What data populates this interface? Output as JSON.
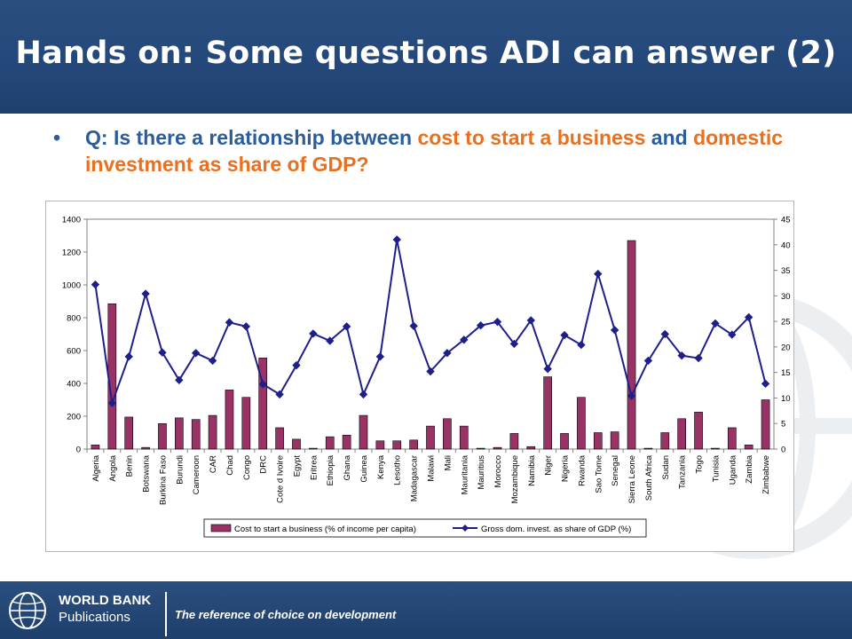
{
  "slide": {
    "title": "Hands on: Some questions ADI can answer (2)",
    "bullet": "•",
    "question": {
      "part1": "Q: Is there a relationship between ",
      "part2": "cost to start a business",
      "part3": " and ",
      "part4": "domestic investment as share of GDP?"
    }
  },
  "footer": {
    "brand_line1": "WORLD BANK",
    "brand_line2": "Publications",
    "tagline": "The reference of choice on development"
  },
  "colors": {
    "bar": "#993366",
    "line": "#1f1f8a",
    "accent_orange": "#e8701f",
    "question_blue": "#2a5d9a"
  },
  "chart_data": {
    "type": "bar+line",
    "categories": [
      "Algeria",
      "Angola",
      "Benin",
      "Botswana",
      "Burkina Faso",
      "Burundi",
      "Cameroon",
      "CAR",
      "Chad",
      "Congo",
      "DRC",
      "Cote d Ivoire",
      "Egypt",
      "Eritrea",
      "Ethiopia",
      "Ghana",
      "Guinea",
      "Kenya",
      "Lesotho",
      "Madagascar",
      "Malawi",
      "Mali",
      "Mauritania",
      "Mauritius",
      "Morocco",
      "Mozambique",
      "Namibia",
      "Niger",
      "Nigeria",
      "Rwanda",
      "Sao Tome",
      "Senegal",
      "Sierra Leone",
      "South Africa",
      "Sudan",
      "Tanzania",
      "Togo",
      "Tunisia",
      "Uganda",
      "Zambia",
      "Zimbabwe"
    ],
    "series": [
      {
        "name": "Cost to start a business (% of income per capita)",
        "axis": "left",
        "type": "bar",
        "values": [
          25,
          885,
          195,
          10,
          155,
          190,
          180,
          205,
          360,
          315,
          555,
          130,
          60,
          5,
          75,
          85,
          205,
          50,
          50,
          55,
          140,
          185,
          140,
          5,
          10,
          95,
          15,
          440,
          95,
          315,
          100,
          105,
          1270,
          5,
          100,
          185,
          225,
          5,
          130,
          25,
          300
        ]
      },
      {
        "name": "Gross dom. invest. as share of GDP (%)",
        "axis": "right",
        "type": "line",
        "values": [
          32.2,
          9.0,
          18.1,
          30.4,
          18.9,
          13.5,
          18.8,
          17.3,
          24.8,
          24.0,
          12.7,
          10.7,
          16.4,
          22.6,
          21.2,
          24.0,
          10.7,
          18.1,
          41.0,
          24.1,
          15.2,
          18.8,
          21.4,
          24.2,
          24.9,
          20.6,
          25.2,
          15.7,
          22.3,
          20.4,
          34.3,
          23.3,
          10.4,
          17.3,
          22.5,
          18.3,
          17.8,
          24.6,
          22.4,
          25.8,
          12.8
        ]
      }
    ],
    "left_axis": {
      "min": 0,
      "max": 1400,
      "ticks": [
        "0",
        "200",
        "400",
        "600",
        "800",
        "1000",
        "1200",
        "1400"
      ]
    },
    "right_axis": {
      "min": 0,
      "max": 45,
      "ticks": [
        "0",
        "5",
        "10",
        "15",
        "20",
        "25",
        "30",
        "35",
        "40",
        "45"
      ]
    },
    "legend": {
      "placement": "bottom",
      "bar_label": "Cost to start a business (% of income per capita)",
      "line_label": "Gross dom. invest. as share of GDP (%)"
    }
  }
}
